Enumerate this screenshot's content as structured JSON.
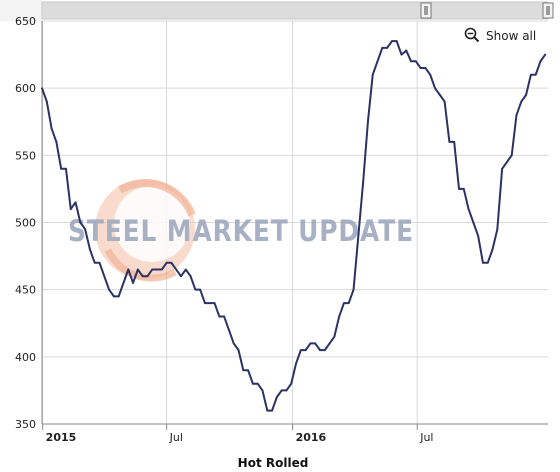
{
  "chart_data": {
    "type": "line",
    "title": "",
    "xlabel": "Hot Rolled",
    "ylabel": "",
    "ylim": [
      350,
      650
    ],
    "yticks": [
      350,
      400,
      450,
      500,
      550,
      600,
      650
    ],
    "xlim": [
      "2014-12-31",
      "2017-01-08"
    ],
    "xticks": [
      {
        "date": "2015-01-01",
        "label": "2015",
        "major": true
      },
      {
        "date": "2015-07-01",
        "label": "Jul",
        "major": false
      },
      {
        "date": "2016-01-01",
        "label": "2016",
        "major": true
      },
      {
        "date": "2016-07-01",
        "label": "Jul",
        "major": false
      }
    ],
    "grid": true,
    "legend": "none",
    "series": [
      {
        "color": "#2b3264",
        "x": [
          "2014-12-31",
          "2015-01-07",
          "2015-01-14",
          "2015-01-21",
          "2015-01-28",
          "2015-02-04",
          "2015-02-11",
          "2015-02-18",
          "2015-02-25",
          "2015-03-04",
          "2015-03-11",
          "2015-03-18",
          "2015-03-25",
          "2015-04-01",
          "2015-04-08",
          "2015-04-15",
          "2015-04-22",
          "2015-04-29",
          "2015-05-06",
          "2015-05-13",
          "2015-05-20",
          "2015-05-27",
          "2015-06-03",
          "2015-06-10",
          "2015-06-17",
          "2015-06-24",
          "2015-07-01",
          "2015-07-08",
          "2015-07-15",
          "2015-07-22",
          "2015-07-29",
          "2015-08-05",
          "2015-08-12",
          "2015-08-19",
          "2015-08-26",
          "2015-09-02",
          "2015-09-09",
          "2015-09-16",
          "2015-09-23",
          "2015-09-30",
          "2015-10-07",
          "2015-10-14",
          "2015-10-21",
          "2015-10-28",
          "2015-11-04",
          "2015-11-11",
          "2015-11-18",
          "2015-11-25",
          "2015-12-02",
          "2015-12-09",
          "2015-12-16",
          "2015-12-23",
          "2015-12-30",
          "2016-01-06",
          "2016-01-13",
          "2016-01-20",
          "2016-01-27",
          "2016-02-03",
          "2016-02-10",
          "2016-02-17",
          "2016-02-24",
          "2016-03-02",
          "2016-03-09",
          "2016-03-16",
          "2016-03-23",
          "2016-03-30",
          "2016-04-06",
          "2016-04-13",
          "2016-04-20",
          "2016-04-27",
          "2016-05-04",
          "2016-05-11",
          "2016-05-18",
          "2016-05-25",
          "2016-06-01",
          "2016-06-08",
          "2016-06-15",
          "2016-06-22",
          "2016-06-29",
          "2016-07-06",
          "2016-07-13",
          "2016-07-20",
          "2016-07-27",
          "2016-08-03",
          "2016-08-10",
          "2016-08-17",
          "2016-08-24",
          "2016-08-31",
          "2016-09-07",
          "2016-09-14",
          "2016-09-21",
          "2016-09-28",
          "2016-10-05",
          "2016-10-12",
          "2016-10-19",
          "2016-10-26",
          "2016-11-02",
          "2016-11-09",
          "2016-11-16",
          "2016-11-23",
          "2016-11-30",
          "2016-12-07",
          "2016-12-14",
          "2016-12-21",
          "2016-12-28",
          "2017-01-04"
        ],
        "values": [
          600,
          590,
          570,
          560,
          540,
          540,
          510,
          515,
          500,
          495,
          480,
          470,
          470,
          460,
          450,
          445,
          445,
          455,
          465,
          455,
          465,
          460,
          460,
          465,
          465,
          465,
          470,
          470,
          465,
          460,
          465,
          460,
          450,
          450,
          440,
          440,
          440,
          430,
          430,
          420,
          410,
          405,
          390,
          390,
          380,
          380,
          375,
          360,
          360,
          370,
          375,
          375,
          380,
          395,
          405,
          405,
          410,
          410,
          405,
          405,
          410,
          415,
          430,
          440,
          440,
          450,
          490,
          530,
          575,
          610,
          620,
          630,
          630,
          635,
          635,
          625,
          628,
          620,
          620,
          615,
          615,
          610,
          600,
          595,
          590,
          560,
          560,
          525,
          525,
          510,
          500,
          490,
          470,
          470,
          480,
          495,
          540,
          545,
          550,
          580,
          590,
          595,
          610,
          610,
          620,
          625
        ]
      }
    ]
  },
  "watermark": "STEEL MARKET UPDATE",
  "controls": {
    "show_all_label": "Show all",
    "zoom_icon": "zoom-out-icon"
  },
  "colors": {
    "line": "#2b3264",
    "grid": "#d9d9d9",
    "navigator": "#dcdcdc",
    "watermark_text": "#9aa4ba",
    "watermark_logo": "#f2b49a"
  }
}
